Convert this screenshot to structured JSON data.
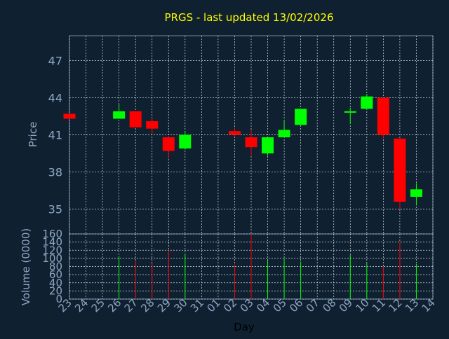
{
  "chart_data": {
    "type": "candlestick",
    "title": "PRGS - last updated 13/02/2026",
    "xlabel": "Day",
    "price_panel": {
      "ylabel": "Price",
      "yticks": [
        35,
        38,
        41,
        44,
        47
      ],
      "ylim": [
        33,
        49
      ],
      "grid": true
    },
    "volume_panel": {
      "ylabel": "Volume (0000)",
      "yticks": [
        0,
        20,
        40,
        60,
        80,
        100,
        120,
        140,
        160
      ],
      "ylim": [
        0,
        160
      ],
      "grid": true
    },
    "x_tick_labels": [
      "23",
      "24",
      "25",
      "26",
      "27",
      "28",
      "29",
      "30",
      "31",
      "01",
      "02",
      "03",
      "04",
      "05",
      "06",
      "07",
      "08",
      "09",
      "10",
      "11",
      "12",
      "13",
      "14"
    ],
    "candles": [
      {
        "day": "23",
        "open": 42.7,
        "high": 42.7,
        "low": 42.3,
        "close": 42.3,
        "volume": 0
      },
      {
        "day": "26",
        "open": 42.3,
        "high": 43.5,
        "low": 42.3,
        "close": 42.9,
        "volume": 105
      },
      {
        "day": "27",
        "open": 42.9,
        "high": 42.9,
        "low": 41.6,
        "close": 41.6,
        "volume": 93
      },
      {
        "day": "28",
        "open": 42.1,
        "high": 42.4,
        "low": 41.1,
        "close": 41.5,
        "volume": 88
      },
      {
        "day": "29",
        "open": 40.8,
        "high": 40.9,
        "low": 39.1,
        "close": 39.7,
        "volume": 120
      },
      {
        "day": "30",
        "open": 39.9,
        "high": 41.3,
        "low": 39.8,
        "close": 41.0,
        "volume": 110
      },
      {
        "day": "02",
        "open": 41.3,
        "high": 41.6,
        "low": 40.9,
        "close": 41.0,
        "volume": 85
      },
      {
        "day": "03",
        "open": 40.8,
        "high": 41.4,
        "low": 39.3,
        "close": 40.0,
        "volume": 160
      },
      {
        "day": "04",
        "open": 39.5,
        "high": 40.8,
        "low": 39.3,
        "close": 40.8,
        "volume": 95
      },
      {
        "day": "05",
        "open": 40.8,
        "high": 42.1,
        "low": 40.8,
        "close": 41.4,
        "volume": 100
      },
      {
        "day": "06",
        "open": 41.8,
        "high": 43.1,
        "low": 41.8,
        "close": 43.1,
        "volume": 92
      },
      {
        "day": "09",
        "open": 42.8,
        "high": 43.2,
        "low": 41.9,
        "close": 42.9,
        "volume": 108
      },
      {
        "day": "10",
        "open": 43.1,
        "high": 44.3,
        "low": 43.1,
        "close": 44.1,
        "volume": 88
      },
      {
        "day": "11",
        "open": 44.0,
        "high": 44.0,
        "low": 40.7,
        "close": 41.0,
        "volume": 80
      },
      {
        "day": "12",
        "open": 40.7,
        "high": 40.7,
        "low": 35.0,
        "close": 35.6,
        "volume": 140
      },
      {
        "day": "13",
        "open": 36.0,
        "high": 37.1,
        "low": 35.3,
        "close": 36.6,
        "volume": 86
      }
    ],
    "colors": {
      "background": "#0f2030",
      "plot_border": "#6f8aa8",
      "grid": "#d7dfe8",
      "title": "#ffff00",
      "axis_text": "#8fa7c4",
      "xlabel": "#000000",
      "up": "#00ff00",
      "down": "#ff0000"
    }
  }
}
